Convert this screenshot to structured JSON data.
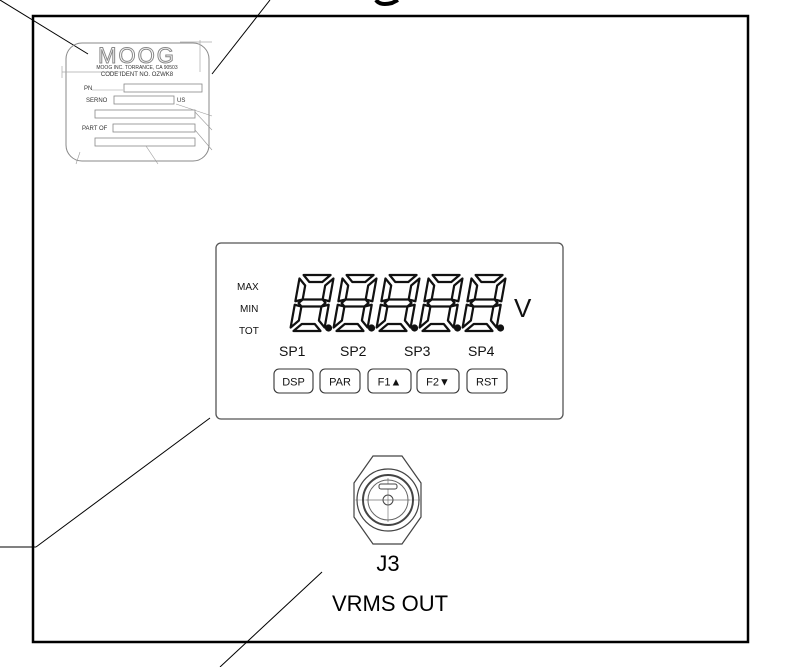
{
  "nameplate": {
    "logo": "MOOG",
    "company": "MOOG INC. TORRANCE, CA 90503",
    "code_ident": "CODE IDENT NO. OZWK8",
    "pn_label": "PN",
    "serno_label": "SERNO",
    "us_label": "US",
    "part_of_label": "PART OF"
  },
  "meter": {
    "indicators": [
      "MAX",
      "MIN",
      "TOT"
    ],
    "digits": [
      "8",
      "8",
      "8",
      "8",
      "8"
    ],
    "unit": "V",
    "setpoints": [
      "SP1",
      "SP2",
      "SP3",
      "SP4"
    ],
    "buttons": [
      {
        "label": "DSP"
      },
      {
        "label": "PAR"
      },
      {
        "label": "F1▲"
      },
      {
        "label": "F2▼"
      },
      {
        "label": "RST"
      }
    ]
  },
  "connector": {
    "id": "J3",
    "name": "VRMS OUT"
  }
}
